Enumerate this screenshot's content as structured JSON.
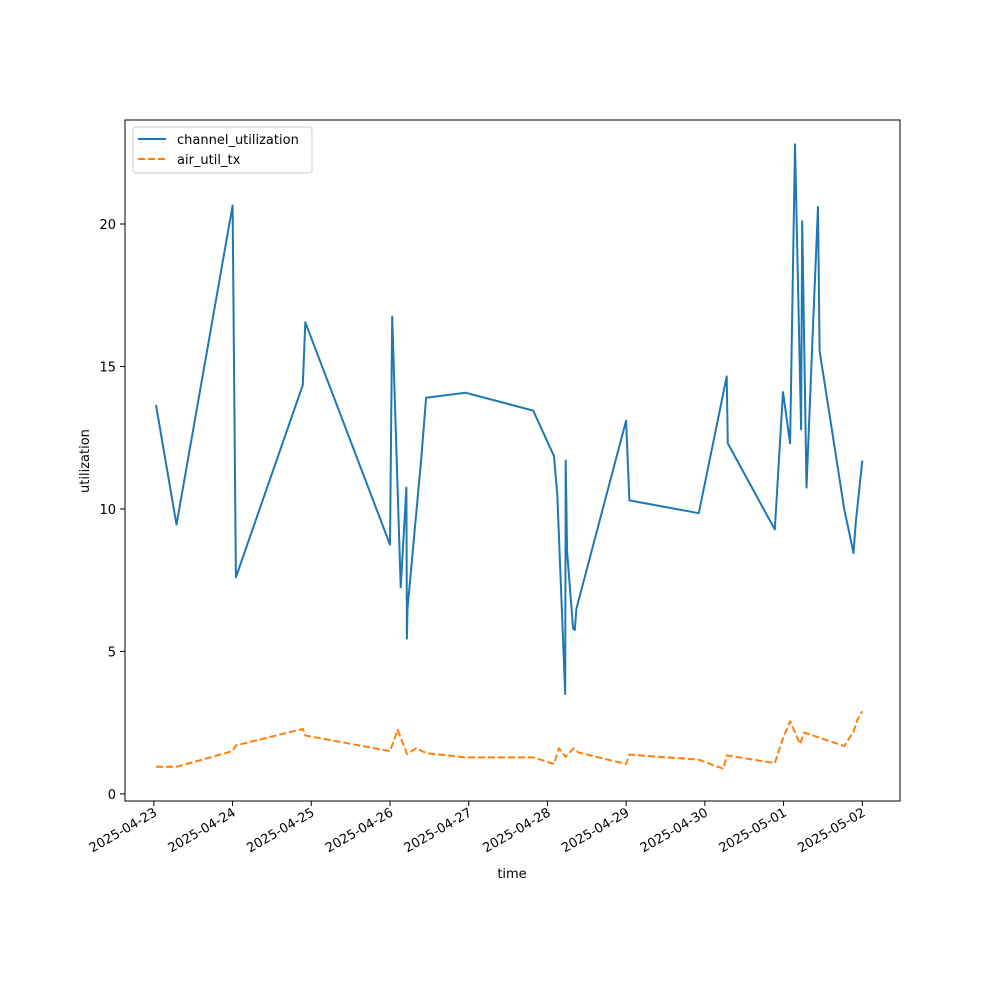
{
  "chart_data": {
    "type": "line",
    "xlabel": "time",
    "ylabel": "utilization",
    "x_ticks": [
      "2025-04-23",
      "2025-04-24",
      "2025-04-25",
      "2025-04-26",
      "2025-04-27",
      "2025-04-28",
      "2025-04-29",
      "2025-04-30",
      "2025-05-01",
      "2025-05-02"
    ],
    "y_ticks": [
      0,
      5,
      10,
      15,
      20
    ],
    "xlim": [
      "2025-04-22T15:12",
      "2025-05-02T11:30"
    ],
    "ylim": [
      -0.25,
      23.65
    ],
    "legend_position": "upper-left",
    "series": [
      {
        "name": "channel_utilization",
        "color": "#1f77b4",
        "dash": "solid",
        "points": [
          [
            "2025-04-23T00:40",
            13.65
          ],
          [
            "2025-04-23T06:55",
            9.45
          ],
          [
            "2025-04-24T00:00",
            20.65
          ],
          [
            "2025-04-24T01:00",
            7.6
          ],
          [
            "2025-04-24T21:25",
            14.35
          ],
          [
            "2025-04-24T22:10",
            16.55
          ],
          [
            "2025-04-26T00:00",
            8.75
          ],
          [
            "2025-04-26T00:40",
            16.75
          ],
          [
            "2025-04-26T03:15",
            7.25
          ],
          [
            "2025-04-26T05:00",
            10.75
          ],
          [
            "2025-04-26T05:10",
            5.45
          ],
          [
            "2025-04-26T05:20",
            6.5
          ],
          [
            "2025-04-26T09:30",
            11.75
          ],
          [
            "2025-04-26T11:00",
            13.9
          ],
          [
            "2025-04-26T23:00",
            14.08
          ],
          [
            "2025-04-27T19:40",
            13.45
          ],
          [
            "2025-04-28T02:00",
            11.85
          ],
          [
            "2025-04-28T03:00",
            10.5
          ],
          [
            "2025-04-28T05:25",
            3.5
          ],
          [
            "2025-04-28T05:35",
            11.7
          ],
          [
            "2025-04-28T06:00",
            8.5
          ],
          [
            "2025-04-28T07:50",
            5.8
          ],
          [
            "2025-04-28T08:20",
            5.75
          ],
          [
            "2025-04-28T08:50",
            6.5
          ],
          [
            "2025-04-29T00:00",
            13.1
          ],
          [
            "2025-04-29T01:00",
            10.3
          ],
          [
            "2025-04-29T22:10",
            9.85
          ],
          [
            "2025-04-30T06:40",
            14.65
          ],
          [
            "2025-04-30T07:00",
            12.3
          ],
          [
            "2025-04-30T21:20",
            9.28
          ],
          [
            "2025-04-30T23:50",
            14.1
          ],
          [
            "2025-05-01T02:00",
            12.3
          ],
          [
            "2025-05-01T03:30",
            22.8
          ],
          [
            "2025-05-01T05:20",
            12.8
          ],
          [
            "2025-05-01T05:40",
            20.1
          ],
          [
            "2025-05-01T07:00",
            10.75
          ],
          [
            "2025-05-01T09:00",
            16.5
          ],
          [
            "2025-05-01T10:30",
            20.6
          ],
          [
            "2025-05-01T11:00",
            15.55
          ],
          [
            "2025-05-01T18:30",
            10.0
          ],
          [
            "2025-05-01T21:20",
            8.45
          ],
          [
            "2025-05-01T22:00",
            9.5
          ],
          [
            "2025-05-02T00:00",
            11.7
          ]
        ]
      },
      {
        "name": "air_util_tx",
        "color": "#ff7f0e",
        "dash": "dashed",
        "points": [
          [
            "2025-04-23T00:40",
            0.95
          ],
          [
            "2025-04-23T06:55",
            0.95
          ],
          [
            "2025-04-24T00:00",
            1.5
          ],
          [
            "2025-04-24T01:00",
            1.7
          ],
          [
            "2025-04-24T21:25",
            2.28
          ],
          [
            "2025-04-24T22:10",
            2.05
          ],
          [
            "2025-04-26T00:00",
            1.5
          ],
          [
            "2025-04-26T02:20",
            2.25
          ],
          [
            "2025-04-26T05:10",
            1.4
          ],
          [
            "2025-04-26T08:00",
            1.6
          ],
          [
            "2025-04-26T11:00",
            1.43
          ],
          [
            "2025-04-26T23:00",
            1.28
          ],
          [
            "2025-04-27T19:40",
            1.28
          ],
          [
            "2025-04-28T02:00",
            1.05
          ],
          [
            "2025-04-28T03:30",
            1.6
          ],
          [
            "2025-04-28T05:30",
            1.3
          ],
          [
            "2025-04-28T08:00",
            1.6
          ],
          [
            "2025-04-28T09:30",
            1.45
          ],
          [
            "2025-04-29T00:00",
            1.05
          ],
          [
            "2025-04-29T01:00",
            1.38
          ],
          [
            "2025-04-29T22:10",
            1.2
          ],
          [
            "2025-04-30T05:40",
            0.88
          ],
          [
            "2025-04-30T06:40",
            1.35
          ],
          [
            "2025-04-30T21:20",
            1.08
          ],
          [
            "2025-04-30T23:50",
            1.95
          ],
          [
            "2025-05-01T02:00",
            2.55
          ],
          [
            "2025-05-01T05:00",
            1.75
          ],
          [
            "2025-05-01T06:20",
            2.15
          ],
          [
            "2025-05-01T18:30",
            1.68
          ],
          [
            "2025-05-01T21:20",
            2.18
          ],
          [
            "2025-05-01T22:30",
            2.6
          ],
          [
            "2025-05-02T00:00",
            2.9
          ]
        ]
      }
    ]
  }
}
